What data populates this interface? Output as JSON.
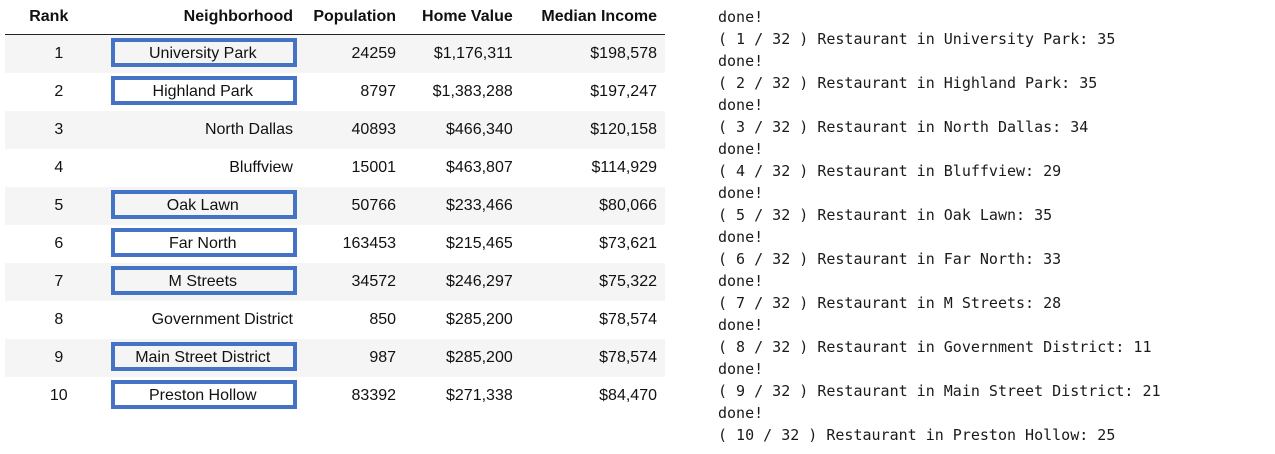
{
  "table": {
    "headers": [
      "Rank",
      "Neighborhood",
      "Population",
      "Home Value",
      "Median Income"
    ],
    "rows": [
      {
        "rank": "1",
        "neighborhood": "University Park",
        "population": "24259",
        "home_value": "$1,176,311",
        "median_income": "$198,578",
        "highlighted": true
      },
      {
        "rank": "2",
        "neighborhood": "Highland Park",
        "population": "8797",
        "home_value": "$1,383,288",
        "median_income": "$197,247",
        "highlighted": true
      },
      {
        "rank": "3",
        "neighborhood": "North Dallas",
        "population": "40893",
        "home_value": "$466,340",
        "median_income": "$120,158",
        "highlighted": false
      },
      {
        "rank": "4",
        "neighborhood": "Bluffview",
        "population": "15001",
        "home_value": "$463,807",
        "median_income": "$114,929",
        "highlighted": false
      },
      {
        "rank": "5",
        "neighborhood": "Oak Lawn",
        "population": "50766",
        "home_value": "$233,466",
        "median_income": "$80,066",
        "highlighted": true
      },
      {
        "rank": "6",
        "neighborhood": "Far North",
        "population": "163453",
        "home_value": "$215,465",
        "median_income": "$73,621",
        "highlighted": true
      },
      {
        "rank": "7",
        "neighborhood": "M Streets",
        "population": "34572",
        "home_value": "$246,297",
        "median_income": "$75,322",
        "highlighted": true
      },
      {
        "rank": "8",
        "neighborhood": "Government District",
        "population": "850",
        "home_value": "$285,200",
        "median_income": "$78,574",
        "highlighted": false
      },
      {
        "rank": "9",
        "neighborhood": "Main Street District",
        "population": "987",
        "home_value": "$285,200",
        "median_income": "$78,574",
        "highlighted": true
      },
      {
        "rank": "10",
        "neighborhood": "Preston Hollow",
        "population": "83392",
        "home_value": "$271,338",
        "median_income": "$84,470",
        "highlighted": true
      }
    ]
  },
  "console": {
    "lines": [
      "done!",
      "( 1 / 32 ) Restaurant in University Park: 35",
      "done!",
      "( 2 / 32 ) Restaurant in Highland Park: 35",
      "done!",
      "( 3 / 32 ) Restaurant in North Dallas: 34",
      "done!",
      "( 4 / 32 ) Restaurant in Bluffview: 29",
      "done!",
      "( 5 / 32 ) Restaurant in Oak Lawn: 35",
      "done!",
      "( 6 / 32 ) Restaurant in Far North: 33",
      "done!",
      "( 7 / 32 ) Restaurant in M Streets: 28",
      "done!",
      "( 8 / 32 ) Restaurant in Government District: 11",
      "done!",
      "( 9 / 32 ) Restaurant in Main Street District: 21",
      "done!",
      "( 10 / 32 ) Restaurant in Preston Hollow: 25"
    ]
  },
  "colors": {
    "highlight_border": "#4472c4",
    "stripe": "#f5f5f5"
  }
}
